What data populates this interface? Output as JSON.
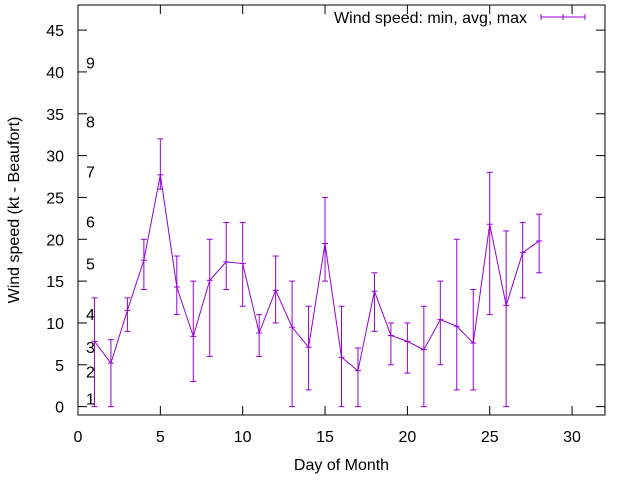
{
  "chart_data": {
    "type": "line",
    "title": "",
    "xlabel": "Day of Month",
    "ylabel": "Wind speed (kt - Beaufort)",
    "xlim": [
      0,
      32
    ],
    "ylim": [
      -1,
      48
    ],
    "x_ticks": [
      "0",
      "5",
      "10",
      "15",
      "20",
      "25",
      "30"
    ],
    "y_ticks": [
      "0",
      "5",
      "10",
      "15",
      "20",
      "25",
      "30",
      "35",
      "40",
      "45"
    ],
    "beaufort_labels": [
      {
        "label": "1",
        "value": 1
      },
      {
        "label": "2",
        "value": 4.2
      },
      {
        "label": "3",
        "value": 7.1
      },
      {
        "label": "4",
        "value": 11.1
      },
      {
        "label": "5",
        "value": 17.1
      },
      {
        "label": "6",
        "value": 22.1
      },
      {
        "label": "7",
        "value": 28.1
      },
      {
        "label": "8",
        "value": 34.1
      },
      {
        "label": "9",
        "value": 41.1
      }
    ],
    "grid": false,
    "legend_position": "top-right",
    "series": [
      {
        "name": "Wind speed: min, avg, max",
        "color": "#9400d3",
        "points": [
          {
            "x": 1,
            "avg": 7.8,
            "min": 0,
            "max": 13
          },
          {
            "x": 2,
            "avg": 5.2,
            "min": 0,
            "max": 8
          },
          {
            "x": 3,
            "avg": 11.5,
            "min": 9,
            "max": 13
          },
          {
            "x": 4,
            "avg": 17.5,
            "min": 14,
            "max": 20
          },
          {
            "x": 5,
            "avg": 27.7,
            "min": 26,
            "max": 32
          },
          {
            "x": 6,
            "avg": 14.3,
            "min": 11,
            "max": 18
          },
          {
            "x": 7,
            "avg": 8.4,
            "min": 3,
            "max": 15
          },
          {
            "x": 8,
            "avg": 15.1,
            "min": 6,
            "max": 20
          },
          {
            "x": 9,
            "avg": 17.3,
            "min": 14,
            "max": 22
          },
          {
            "x": 10,
            "avg": 17.1,
            "min": 12,
            "max": 22
          },
          {
            "x": 11,
            "avg": 8.8,
            "min": 6,
            "max": 11
          },
          {
            "x": 12,
            "avg": 13.9,
            "min": 10,
            "max": 18
          },
          {
            "x": 13,
            "avg": 9.5,
            "min": 0,
            "max": 15
          },
          {
            "x": 14,
            "avg": 7.1,
            "min": 2,
            "max": 12
          },
          {
            "x": 15,
            "avg": 19.5,
            "min": 15,
            "max": 25
          },
          {
            "x": 16,
            "avg": 5.9,
            "min": 0,
            "max": 12
          },
          {
            "x": 17,
            "avg": 4.3,
            "min": 0,
            "max": 7
          },
          {
            "x": 18,
            "avg": 13.8,
            "min": 9,
            "max": 16
          },
          {
            "x": 19,
            "avg": 8.5,
            "min": 5,
            "max": 10
          },
          {
            "x": 20,
            "avg": 7.8,
            "min": 4,
            "max": 10
          },
          {
            "x": 21,
            "avg": 6.8,
            "min": 0,
            "max": 12
          },
          {
            "x": 22,
            "avg": 10.4,
            "min": 5,
            "max": 15
          },
          {
            "x": 23,
            "avg": 9.6,
            "min": 2,
            "max": 20
          },
          {
            "x": 24,
            "avg": 7.6,
            "min": 2,
            "max": 14
          },
          {
            "x": 25,
            "avg": 21.8,
            "min": 11,
            "max": 28
          },
          {
            "x": 26,
            "avg": 12.1,
            "min": 0,
            "max": 21
          },
          {
            "x": 27,
            "avg": 18.4,
            "min": 13,
            "max": 22
          },
          {
            "x": 28,
            "avg": 19.8,
            "min": 16,
            "max": 23
          }
        ]
      }
    ]
  }
}
